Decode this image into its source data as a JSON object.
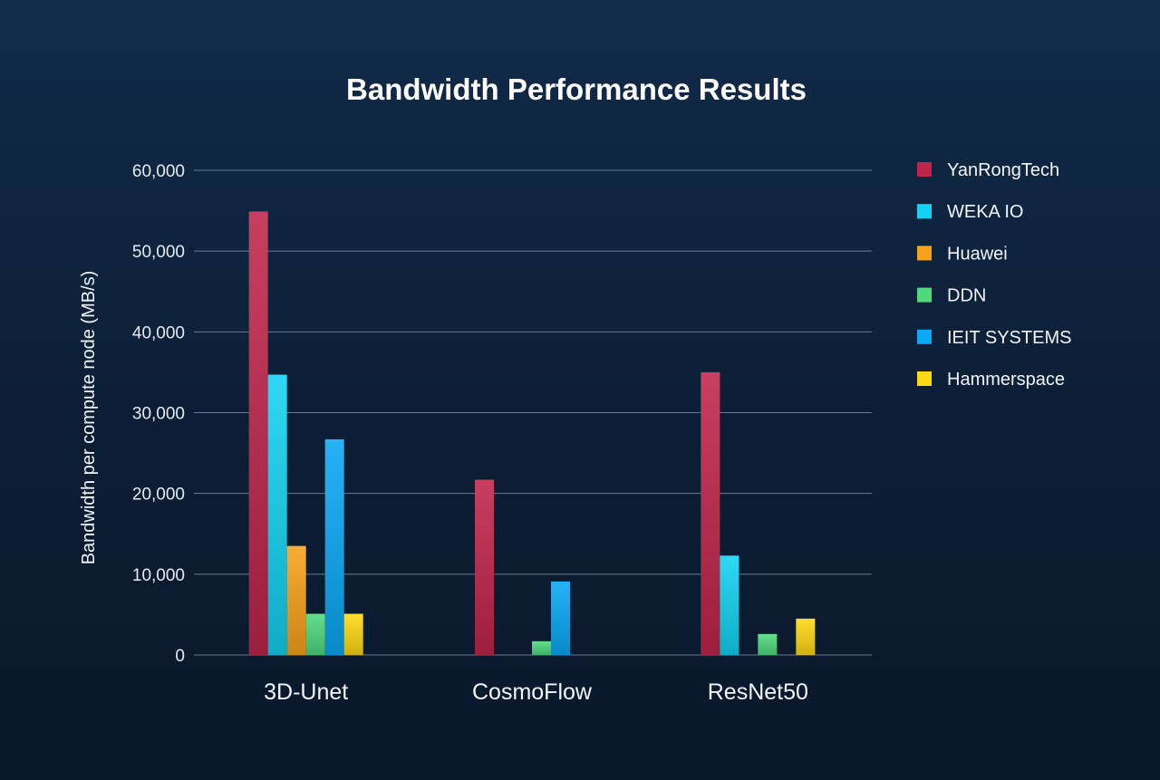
{
  "chart_data": {
    "type": "bar",
    "title": "Bandwidth Performance Results",
    "xlabel": "",
    "ylabel": "Bandwidth per compute node (MB/s)",
    "ylim": [
      0,
      60000
    ],
    "yticks": [
      0,
      10000,
      20000,
      30000,
      40000,
      50000,
      60000
    ],
    "ytick_labels": [
      "0",
      "10,000",
      "20,000",
      "30,000",
      "40,000",
      "50,000",
      "60,000"
    ],
    "categories": [
      "3D-Unet",
      "CosmoFlow",
      "ResNet50"
    ],
    "grid": true,
    "legend_position": "right",
    "series": [
      {
        "name": "YanRongTech",
        "color": "#c0254a",
        "values": [
          54900,
          21700,
          35000
        ]
      },
      {
        "name": "WEKA IO",
        "color": "#14d2f2",
        "values": [
          34700,
          null,
          12300
        ]
      },
      {
        "name": "Huawei",
        "color": "#f7a219",
        "values": [
          13500,
          null,
          null
        ]
      },
      {
        "name": "DDN",
        "color": "#4fd97d",
        "values": [
          5100,
          1700,
          2600
        ]
      },
      {
        "name": "IEIT SYSTEMS",
        "color": "#0aa8f5",
        "values": [
          26700,
          9100,
          null
        ]
      },
      {
        "name": "Hammerspace",
        "color": "#ffd814",
        "values": [
          5100,
          null,
          4500
        ]
      }
    ]
  }
}
